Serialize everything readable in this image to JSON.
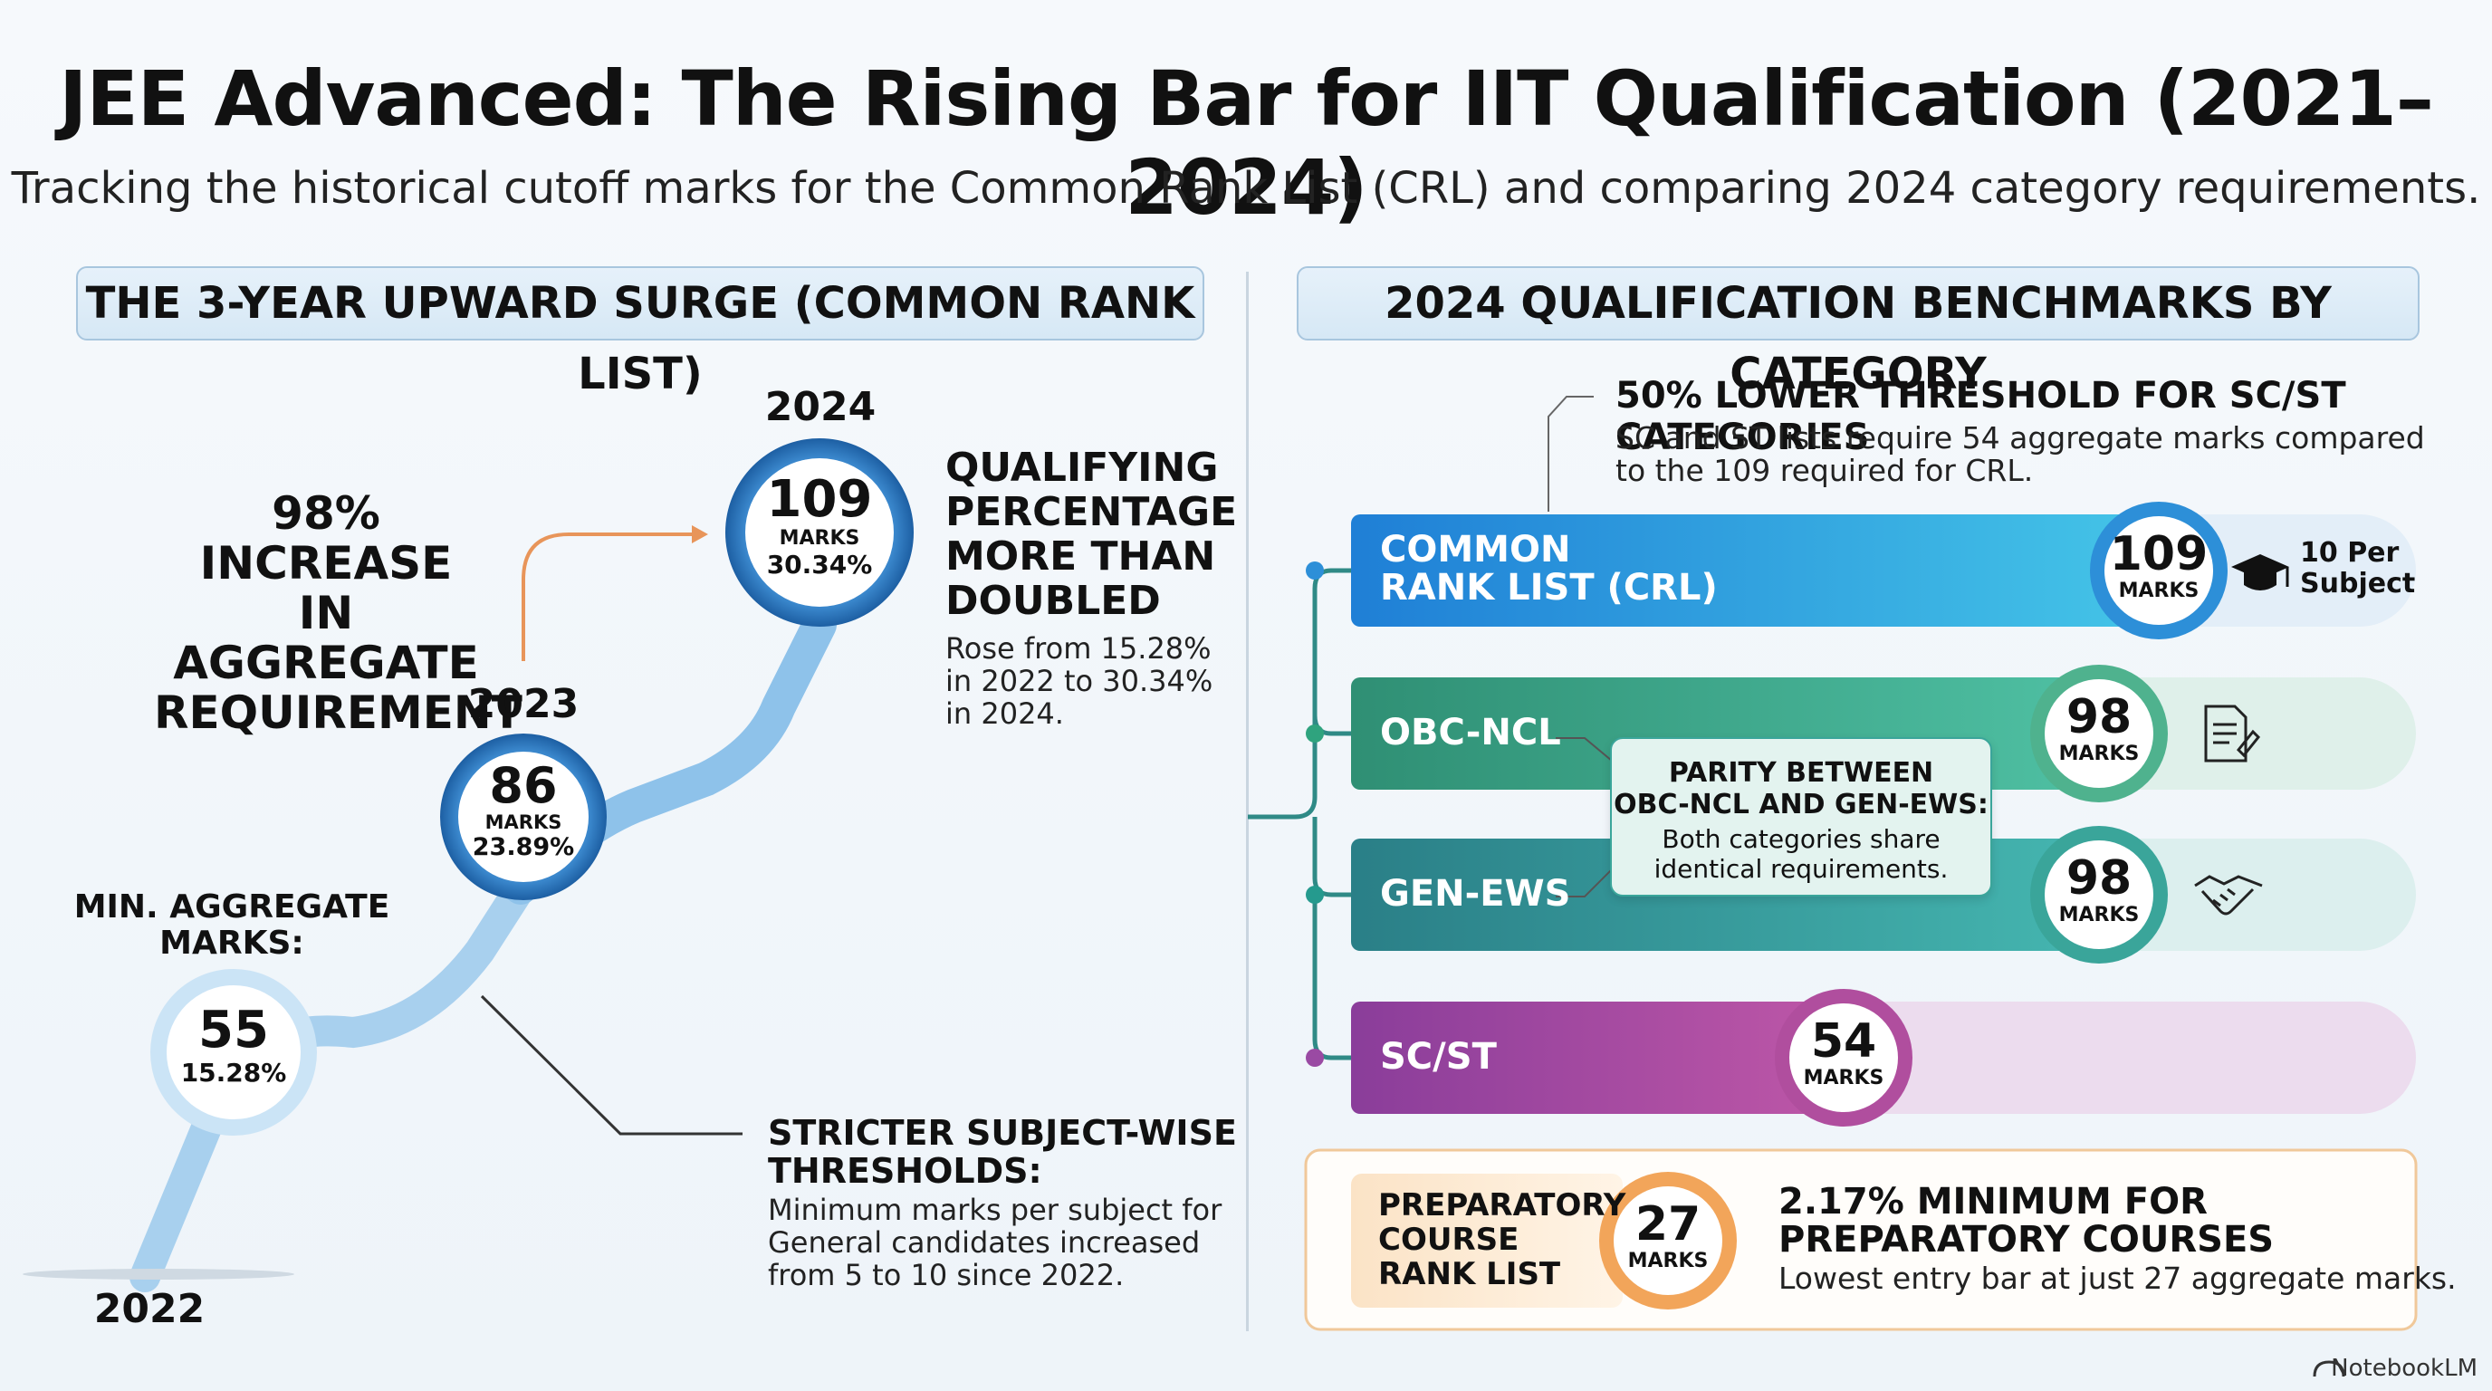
{
  "title": "JEE Advanced: The Rising Bar for IIT Qualification (2021–2024)",
  "subtitle": "Tracking the historical cutoff marks for the Common Rank List (CRL) and comparing 2024 category requirements.",
  "left": {
    "header": "THE 3-YEAR UPWARD SURGE (COMMON RANK LIST)",
    "increase_text": [
      "98% INCREASE",
      "IN AGGREGATE",
      "REQUIREMENT"
    ],
    "min_label": [
      "MIN. AGGREGATE",
      "MARKS:"
    ],
    "years": [
      "2022",
      "2023",
      "2024"
    ],
    "points": [
      {
        "year": "2022",
        "marks": "55",
        "pct": "15.28%"
      },
      {
        "year": "2023",
        "marks": "86",
        "unit": "MARKS",
        "pct": "23.89%"
      },
      {
        "year": "2024",
        "marks": "109",
        "unit": "MARKS",
        "pct": "30.34%"
      }
    ],
    "qualifying_head": [
      "QUALIFYING",
      "PERCENTAGE",
      "MORE THAN",
      "DOUBLED"
    ],
    "qualifying_body": [
      "Rose from 15.28%",
      "in 2022 to 30.34%",
      "in 2024."
    ],
    "stricter_head": [
      "STRICTER SUBJECT-WISE",
      "THRESHOLDS:"
    ],
    "stricter_body": [
      "Minimum marks per subject for",
      "General candidates increased",
      "from 5 to 10 since 2022."
    ]
  },
  "right": {
    "header": "2024 QUALIFICATION BENCHMARKS BY CATEGORY",
    "note_head": "50% LOWER THRESHOLD FOR SC/ST CATEGORIES",
    "note_body": [
      "SC and ST lists require 54 aggregate marks compared",
      "to the 109 required for CRL."
    ],
    "bars": [
      {
        "label": [
          "COMMON",
          "RANK LIST (CRL)"
        ],
        "marks": "109",
        "unit": "MARKS",
        "extra": [
          "10 Per",
          "Subject"
        ],
        "color": "#2d8fd8"
      },
      {
        "label": [
          "OBC-NCL"
        ],
        "marks": "98",
        "unit": "MARKS",
        "color": "#2fa37e"
      },
      {
        "label": [
          "GEN-EWS"
        ],
        "marks": "98",
        "unit": "MARKS",
        "color": "#259a8e"
      },
      {
        "label": [
          "SC/ST"
        ],
        "marks": "54",
        "unit": "MARKS",
        "color": "#9a4aa3"
      }
    ],
    "parity_head": [
      "PARITY BETWEEN",
      "OBC-NCL AND GEN-EWS:"
    ],
    "parity_body": [
      "Both categories share",
      "identical requirements."
    ],
    "prep_label": [
      "PREPARATORY",
      "COURSE",
      "RANK LIST"
    ],
    "prep_marks": "27",
    "prep_unit": "MARKS",
    "prep_head": [
      "2.17% MINIMUM FOR",
      "PREPARATORY COURSES"
    ],
    "prep_body": "Lowest entry bar at just 27 aggregate marks."
  },
  "footer": "NotebookLM"
}
